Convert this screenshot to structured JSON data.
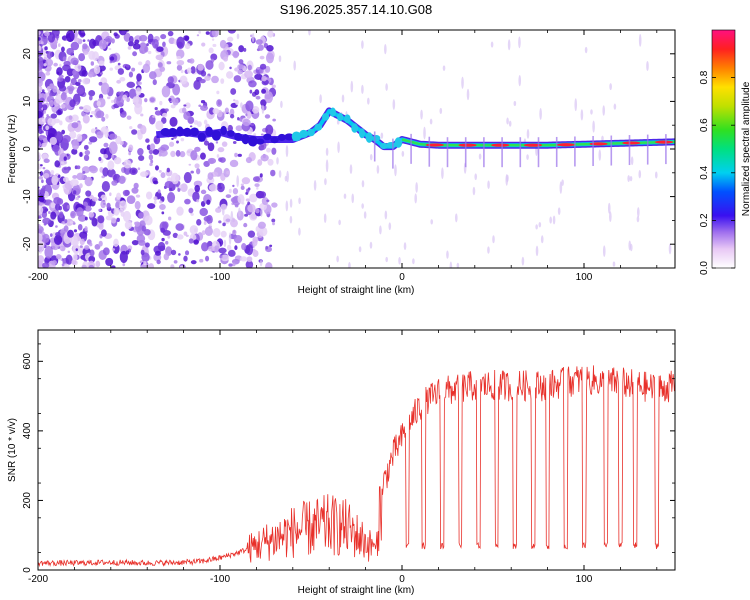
{
  "chart_data": [
    {
      "type": "heatmap",
      "title": "S196.2025.357.14.10.G08",
      "xlabel": "Height of straight line (km)",
      "ylabel": "Frequency (Hz)",
      "xlim": [
        -200,
        150
      ],
      "ylim": [
        -25,
        25
      ],
      "xticks": [
        -200,
        -100,
        0,
        100
      ],
      "yticks": [
        -20,
        -10,
        0,
        10,
        20
      ],
      "colorbar": {
        "label": "Normalized spectral amplitude",
        "range": [
          0,
          1
        ],
        "ticks": [
          0,
          0.2,
          0.4,
          0.6,
          0.8
        ]
      },
      "ridge": {
        "x": [
          -135,
          -120,
          -110,
          -100,
          -90,
          -80,
          -70,
          -60,
          -50,
          -45,
          -40,
          -35,
          -30,
          -25,
          -20,
          -15,
          -10,
          -5,
          0,
          5,
          10,
          20,
          40,
          60,
          80,
          100,
          120,
          150
        ],
        "freq": [
          3,
          3.5,
          3,
          3.5,
          2.5,
          2,
          2,
          2,
          3.5,
          5,
          8,
          7,
          6,
          4.5,
          3,
          2,
          0.5,
          0.5,
          2,
          1.5,
          1,
          0.8,
          0.8,
          0.8,
          0.8,
          1,
          1.2,
          1.5
        ]
      }
    },
    {
      "type": "line",
      "xlabel": "Height of straight line (km)",
      "ylabel": "SNR (10 * v/v)",
      "xlim": [
        -200,
        150
      ],
      "ylim": [
        0,
        690
      ],
      "xticks": [
        -200,
        -100,
        0,
        100
      ],
      "yticks": [
        0,
        200,
        400,
        600
      ],
      "series": [
        {
          "name": "SNR",
          "color": "#e8302a",
          "x": [
            -200,
            -180,
            -160,
            -140,
            -120,
            -110,
            -100,
            -90,
            -80,
            -70,
            -60,
            -50,
            -40,
            -30,
            -20,
            -15,
            -10,
            -5,
            0,
            5,
            10,
            20,
            30,
            40,
            50,
            60,
            70,
            80,
            90,
            100,
            110,
            120,
            130,
            140,
            150
          ],
          "y": [
            20,
            20,
            22,
            20,
            22,
            25,
            35,
            50,
            70,
            90,
            110,
            120,
            130,
            120,
            80,
            60,
            250,
            330,
            380,
            430,
            470,
            510,
            520,
            530,
            530,
            530,
            530,
            530,
            540,
            550,
            540,
            540,
            530,
            520,
            530
          ],
          "dropouts_x": [
            -15,
            3,
            12,
            22,
            32,
            42,
            52,
            62,
            72,
            80,
            90,
            100,
            112,
            120,
            128,
            140
          ],
          "dropout_level": 60
        }
      ]
    }
  ]
}
